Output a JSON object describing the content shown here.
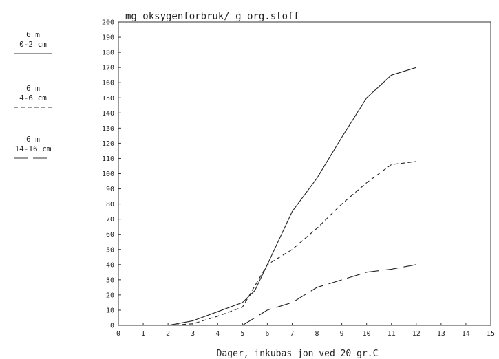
{
  "chart_data": {
    "type": "line",
    "title": "mg oksygenforbruk/ g org.stoff",
    "xlabel": "Dager,  inkubas jon ved 20 gr.C",
    "ylabel": "",
    "xlim": [
      0,
      15
    ],
    "ylim": [
      0,
      200
    ],
    "x_ticks": [
      0,
      1,
      2,
      3,
      4,
      5,
      6,
      7,
      8,
      9,
      10,
      11,
      12,
      13,
      14,
      15
    ],
    "y_ticks": [
      0,
      10,
      20,
      30,
      40,
      50,
      60,
      70,
      80,
      90,
      100,
      110,
      120,
      130,
      140,
      150,
      160,
      170,
      180,
      190,
      200
    ],
    "grid": false,
    "legend_position": "left",
    "series": [
      {
        "name_lines": [
          "6 m",
          "0-2 cm"
        ],
        "style": "solid",
        "x": [
          2,
          3,
          4,
          5,
          5.5,
          6,
          7,
          8,
          9,
          10,
          11,
          12
        ],
        "y": [
          0,
          3,
          9,
          15,
          23,
          40,
          75,
          97,
          124,
          150,
          165,
          170
        ]
      },
      {
        "name_lines": [
          "6 m",
          "4-6 cm"
        ],
        "style": "dash-dot",
        "x": [
          2,
          3,
          4,
          5,
          6,
          7,
          8,
          9,
          10,
          11,
          12
        ],
        "y": [
          0,
          1,
          6,
          12,
          40,
          50,
          64,
          80,
          94,
          106,
          108
        ]
      },
      {
        "name_lines": [
          "6 m",
          "14-16 cm"
        ],
        "style": "long-dash",
        "x": [
          5,
          6,
          7,
          8,
          9,
          10,
          11,
          12
        ],
        "y": [
          0,
          10,
          15,
          25,
          30,
          35,
          37,
          40
        ]
      }
    ]
  }
}
